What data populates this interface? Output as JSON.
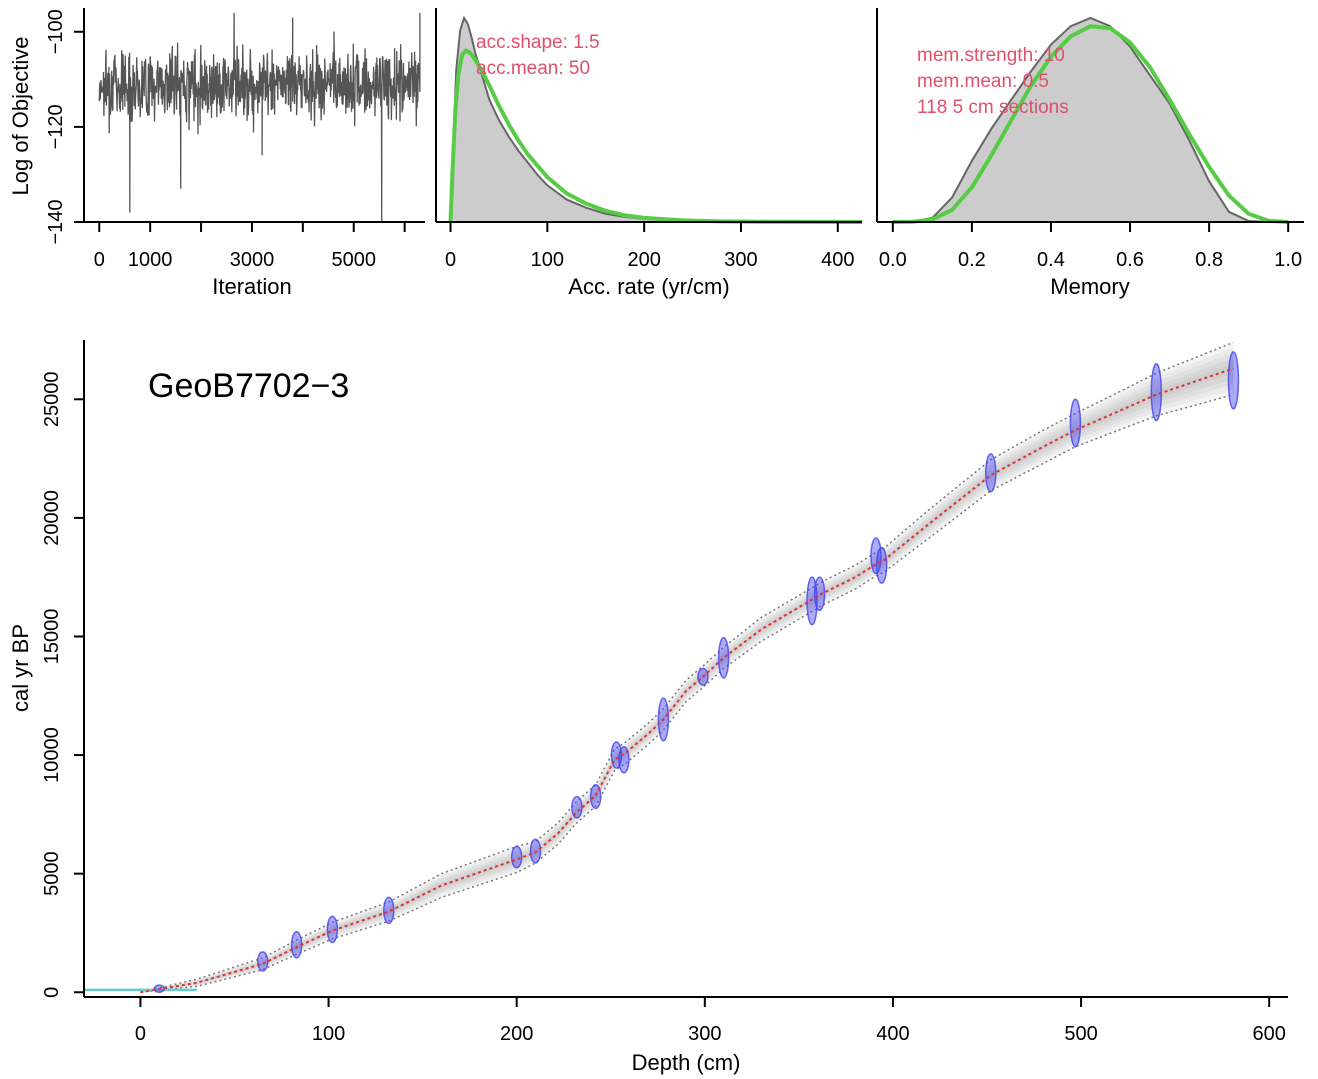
{
  "chart_data": [
    {
      "type": "line",
      "id": "iteration-trace",
      "xlabel": "Iteration",
      "ylabel": "Log of Objective",
      "xlim": [
        -300,
        6400
      ],
      "ylim": [
        -140,
        -95
      ],
      "xticks": [
        0,
        1000,
        3000,
        5000
      ],
      "xtick_minor": [
        2000,
        4000,
        6000
      ],
      "yticks": [
        -140,
        -120,
        -100
      ],
      "series": [
        {
          "color": "#555555",
          "band_mean": -111,
          "band_sd": 6,
          "low_spikes": [
            [
              600,
              -138
            ],
            [
              1600,
              -133
            ],
            [
              5550,
              -140
            ],
            [
              3200,
              -126
            ]
          ],
          "high_spikes": [
            [
              2650,
              -96
            ],
            [
              6300,
              -96
            ],
            [
              3800,
              -97
            ]
          ]
        }
      ]
    },
    {
      "type": "area",
      "id": "acc-rate",
      "xlabel": "Acc. rate (yr/cm)",
      "xlim": [
        -15,
        425
      ],
      "xticks": [
        0,
        100,
        200,
        300,
        400
      ],
      "annotations": [
        "acc.shape:  1.5",
        "acc.mean:  50"
      ],
      "series": [
        {
          "kind": "posterior",
          "color": "#cccccc",
          "x": [
            0,
            3,
            6,
            10,
            14,
            18,
            22,
            26,
            30,
            35,
            40,
            50,
            60,
            70,
            80,
            90,
            100,
            120,
            140,
            160,
            180,
            200,
            230,
            260,
            300,
            350,
            400,
            425
          ],
          "y": [
            0,
            0.4,
            0.75,
            0.94,
            1.0,
            0.97,
            0.9,
            0.82,
            0.76,
            0.68,
            0.6,
            0.5,
            0.42,
            0.35,
            0.29,
            0.23,
            0.18,
            0.11,
            0.07,
            0.04,
            0.025,
            0.015,
            0.008,
            0.004,
            0.002,
            0.001,
            0.0,
            0.0
          ]
        },
        {
          "kind": "prior",
          "color": "#55cc44",
          "x": [
            0,
            2,
            5,
            8,
            12,
            16,
            20,
            25,
            30,
            40,
            50,
            60,
            70,
            80,
            100,
            120,
            140,
            160,
            180,
            200,
            240,
            280,
            330,
            380,
            425
          ],
          "y": [
            0,
            0.25,
            0.55,
            0.72,
            0.82,
            0.84,
            0.83,
            0.8,
            0.76,
            0.67,
            0.57,
            0.48,
            0.4,
            0.33,
            0.22,
            0.14,
            0.09,
            0.055,
            0.033,
            0.02,
            0.008,
            0.003,
            0.001,
            0.0003,
            0.0
          ]
        }
      ]
    },
    {
      "type": "area",
      "id": "memory",
      "xlabel": "Memory",
      "xlim": [
        -0.04,
        1.04
      ],
      "xticks": [
        0.0,
        0.2,
        0.4,
        0.6,
        0.8,
        1.0
      ],
      "annotations": [
        "mem.strength:  10",
        "mem.mean:  0.5",
        "118 5 cm sections"
      ],
      "series": [
        {
          "kind": "posterior",
          "color": "#cccccc",
          "x": [
            0.0,
            0.05,
            0.1,
            0.15,
            0.2,
            0.25,
            0.3,
            0.35,
            0.4,
            0.45,
            0.5,
            0.55,
            0.6,
            0.65,
            0.7,
            0.75,
            0.8,
            0.85,
            0.9,
            0.95,
            1.0
          ],
          "y": [
            0,
            0.002,
            0.02,
            0.12,
            0.3,
            0.46,
            0.6,
            0.74,
            0.87,
            0.96,
            1.0,
            0.96,
            0.86,
            0.72,
            0.58,
            0.4,
            0.2,
            0.05,
            0.005,
            0.0,
            0
          ]
        },
        {
          "kind": "prior",
          "color": "#55cc44",
          "x": [
            0.0,
            0.05,
            0.1,
            0.15,
            0.2,
            0.25,
            0.3,
            0.35,
            0.4,
            0.45,
            0.5,
            0.55,
            0.6,
            0.65,
            0.7,
            0.75,
            0.8,
            0.85,
            0.9,
            0.95,
            1.0
          ],
          "y": [
            0,
            0.001,
            0.012,
            0.06,
            0.17,
            0.33,
            0.5,
            0.67,
            0.81,
            0.91,
            0.96,
            0.95,
            0.88,
            0.76,
            0.6,
            0.43,
            0.27,
            0.13,
            0.04,
            0.006,
            0
          ]
        }
      ]
    },
    {
      "type": "line",
      "id": "age-depth",
      "title": "GeoB7702−3",
      "xlabel": "Depth (cm)",
      "ylabel": "cal yr BP",
      "xlim": [
        -30,
        610
      ],
      "ylim": [
        -200,
        27500
      ],
      "xticks": [
        0,
        100,
        200,
        300,
        400,
        500,
        600
      ],
      "yticks": [
        0,
        5000,
        10000,
        15000,
        20000,
        25000
      ],
      "surface_line": {
        "x": [
          -30,
          30
        ],
        "y": 100,
        "color": "#66cccc"
      },
      "model": {
        "color": "#dd3333",
        "depth": [
          0,
          30,
          65,
          83,
          102,
          132,
          160,
          200,
          210,
          222,
          232,
          242,
          252,
          258,
          270,
          278,
          290,
          299,
          310,
          330,
          358,
          362,
          380,
          392,
          395,
          420,
          452,
          480,
          497,
          520,
          540,
          581
        ],
        "age": [
          0,
          400,
          1200,
          1900,
          2600,
          3400,
          4500,
          5600,
          5900,
          6700,
          7600,
          8300,
          9800,
          10100,
          10900,
          11500,
          12700,
          13300,
          14100,
          15300,
          16600,
          16800,
          17500,
          18100,
          18200,
          19800,
          21800,
          23000,
          23700,
          24500,
          25200,
          26300
        ],
        "halfwidth": [
          0,
          150,
          250,
          300,
          350,
          400,
          500,
          550,
          450,
          450,
          450,
          450,
          450,
          450,
          450,
          450,
          450,
          450,
          450,
          500,
          500,
          500,
          500,
          500,
          500,
          600,
          650,
          700,
          700,
          800,
          900,
          1100
        ]
      },
      "dates": {
        "color": "#4444ee",
        "depth": [
          10,
          65,
          83,
          102,
          132,
          200,
          210,
          232,
          242,
          253,
          257,
          278,
          299,
          310,
          357,
          361,
          391,
          394,
          452,
          497,
          540,
          581
        ],
        "age": [
          150,
          1300,
          2000,
          2650,
          3450,
          5700,
          5950,
          7800,
          8250,
          10000,
          9800,
          11500,
          13300,
          14100,
          16500,
          16800,
          18400,
          18000,
          21900,
          24000,
          25300,
          25800
        ],
        "err": [
          150,
          400,
          550,
          550,
          550,
          450,
          500,
          450,
          500,
          550,
          550,
          900,
          350,
          850,
          1000,
          700,
          750,
          750,
          800,
          1000,
          1200,
          1200
        ]
      }
    }
  ]
}
